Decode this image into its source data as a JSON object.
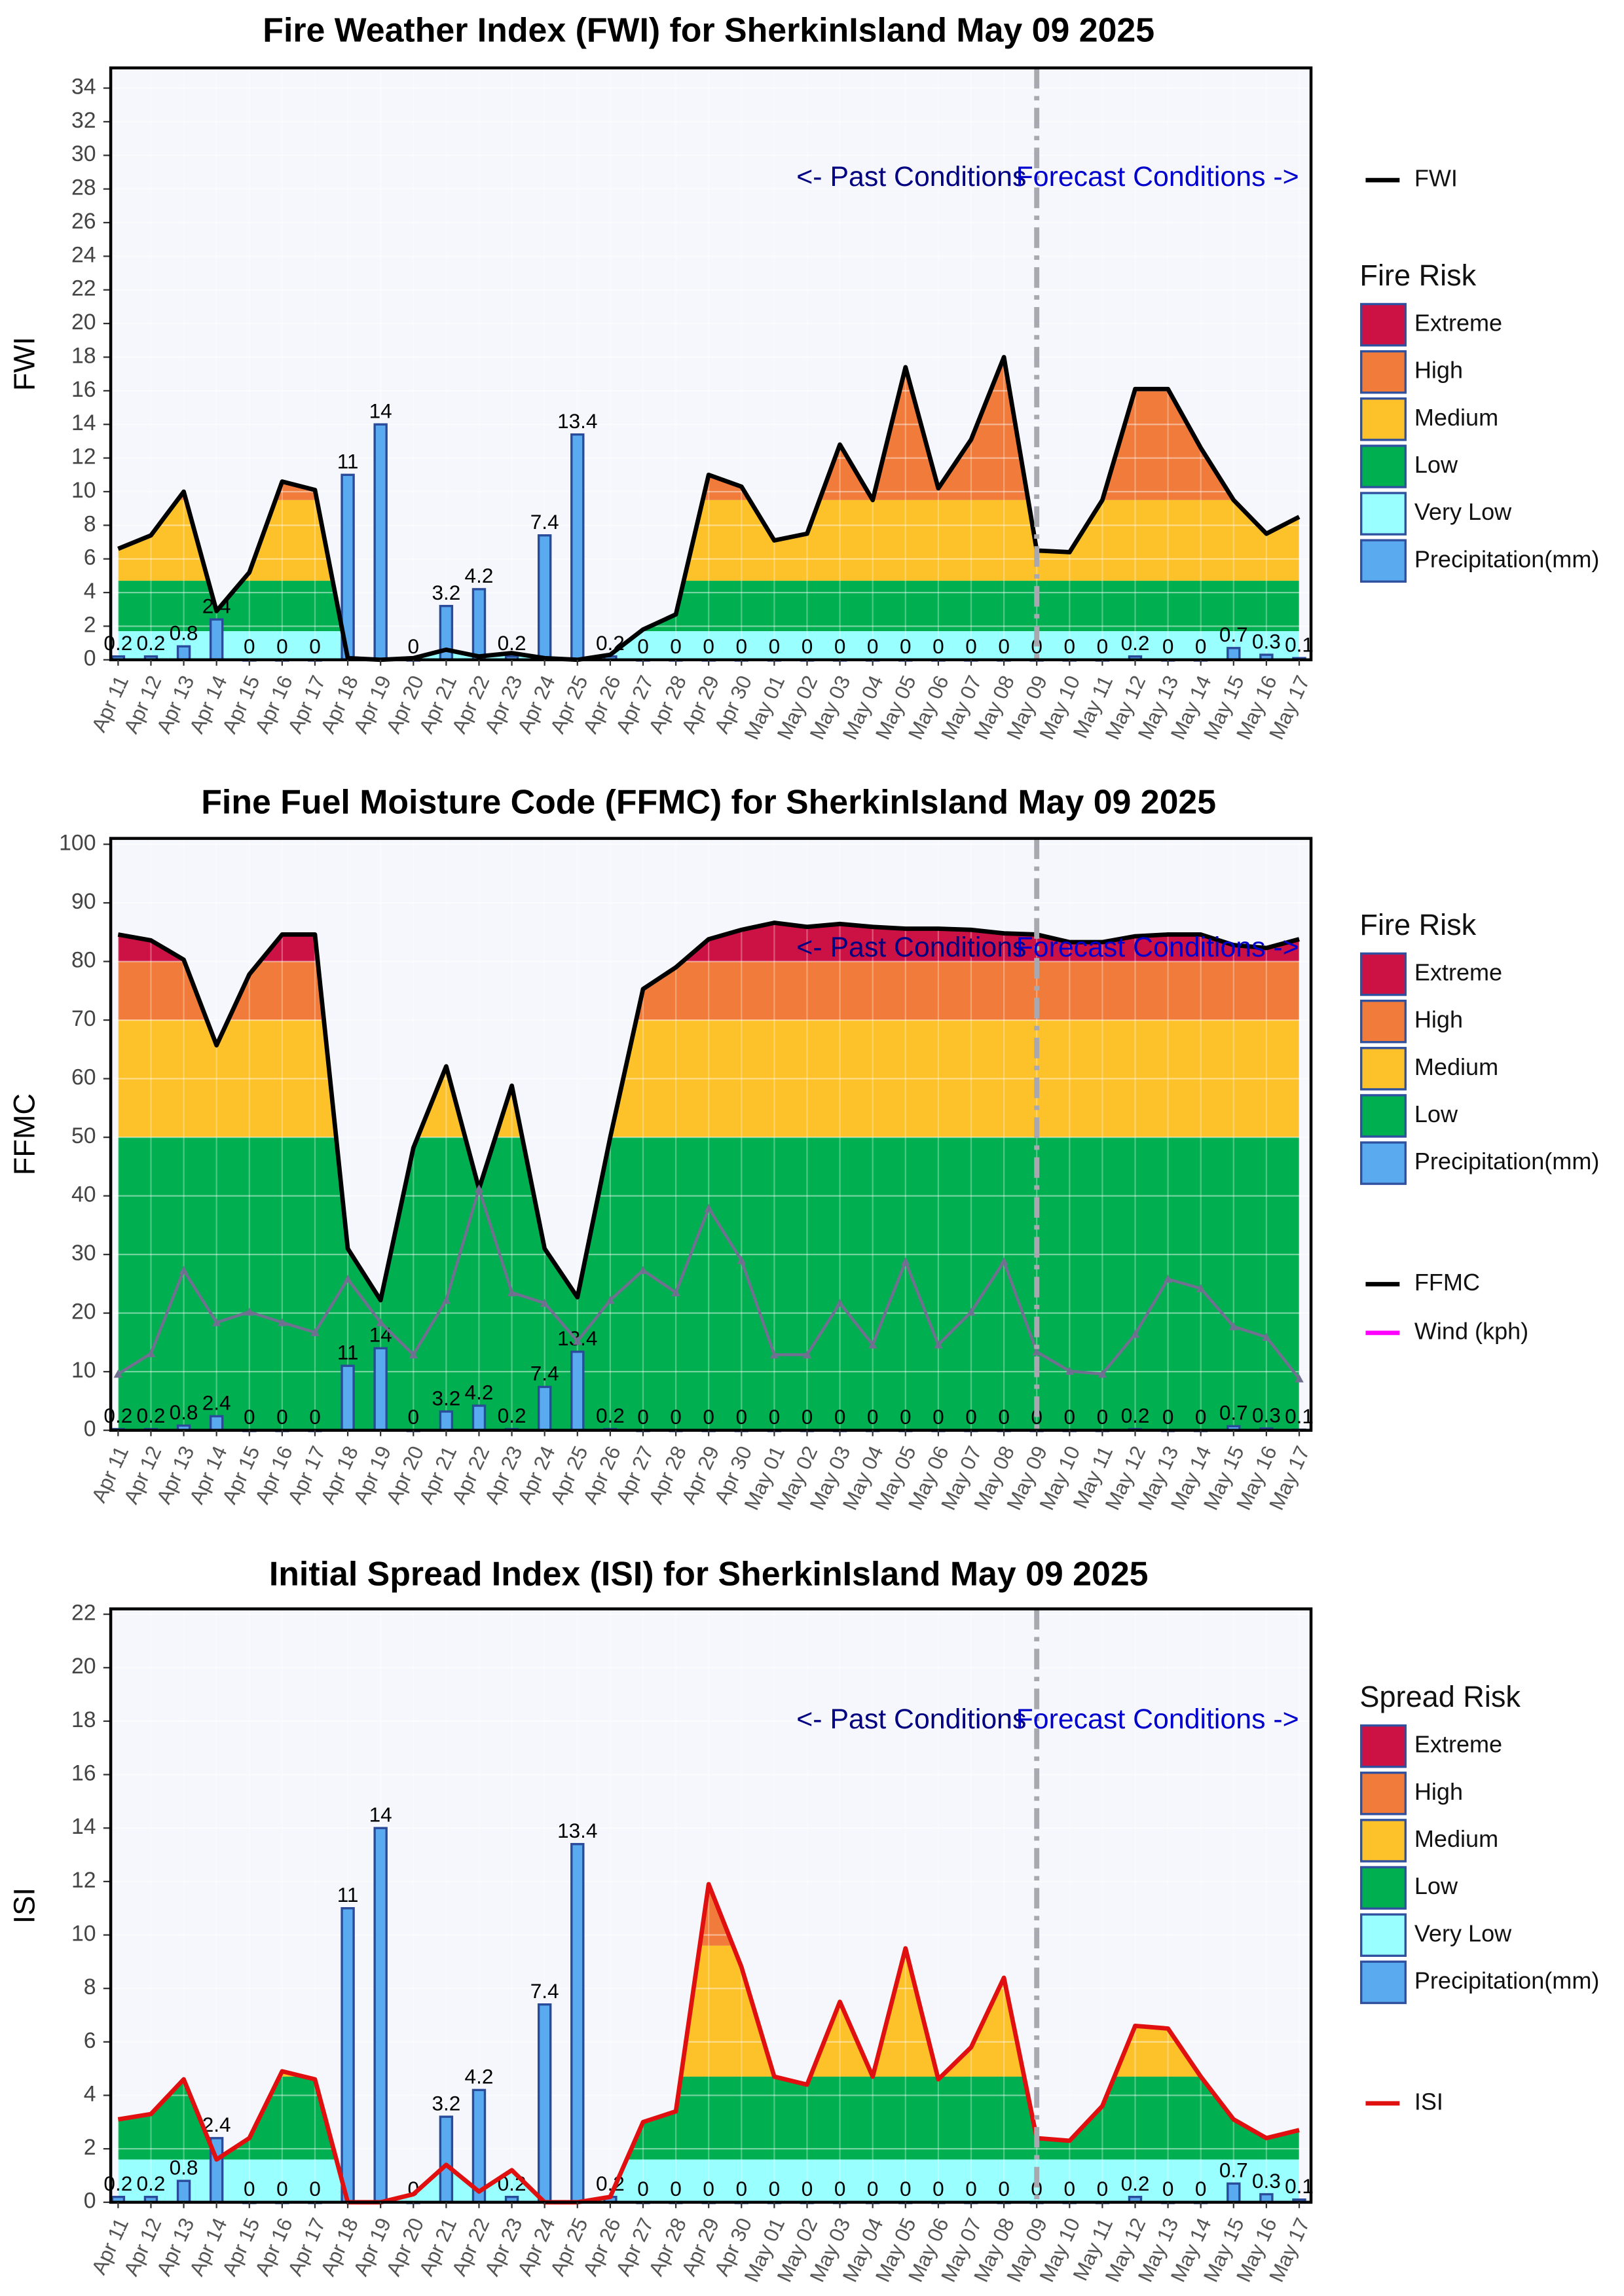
{
  "chart_data": [
    {
      "type": "line",
      "title": "Fire Weather Index (FWI) for SherkinIsland May 09 2025",
      "y_label": "FWI",
      "categories": [
        "Apr 11",
        "Apr 12",
        "Apr 13",
        "Apr 14",
        "Apr 15",
        "Apr 16",
        "Apr 17",
        "Apr 18",
        "Apr 19",
        "Apr 20",
        "Apr 21",
        "Apr 22",
        "Apr 23",
        "Apr 24",
        "Apr 25",
        "Apr 26",
        "Apr 27",
        "Apr 28",
        "Apr 29",
        "Apr 30",
        "May 01",
        "May 02",
        "May 03",
        "May 04",
        "May 05",
        "May 06",
        "May 07",
        "May 08",
        "May 09",
        "May 10",
        "May 11",
        "May 12",
        "May 13",
        "May 14",
        "May 15",
        "May 16",
        "May 17"
      ],
      "ylim": [
        0,
        35.2
      ],
      "yticks": [
        0,
        2,
        4,
        6,
        8,
        10,
        12,
        14,
        16,
        18,
        20,
        22,
        24,
        26,
        28,
        30,
        32,
        34
      ],
      "grid": true,
      "legend_title": "Fire Risk",
      "risk_levels": [
        {
          "name": "Extreme",
          "color": "#cc1144",
          "from": 19
        },
        {
          "name": "High",
          "color": "#f07b3a",
          "from": 9.5,
          "to": 19
        },
        {
          "name": "Medium",
          "color": "#fdc12a",
          "from": 4.7,
          "to": 9.5
        },
        {
          "name": "Low",
          "color": "#00b050",
          "from": 1.7,
          "to": 4.7
        },
        {
          "name": "Very Low",
          "color": "#99ffff",
          "from": 0,
          "to": 1.7
        }
      ],
      "series": [
        {
          "name": "FWI",
          "color": "#000000",
          "fill": true,
          "values": [
            6.6,
            7.4,
            10,
            2.9,
            5.2,
            10.6,
            10.1,
            0.1,
            0,
            0.1,
            0.6,
            0.2,
            0.4,
            0.1,
            0,
            0.3,
            1.8,
            2.7,
            11,
            10.3,
            7.1,
            7.5,
            12.8,
            9.5,
            17.4,
            10.2,
            13.1,
            18,
            6.5,
            6.4,
            9.5,
            16.1,
            16.1,
            12.6,
            9.5,
            7.5,
            8.5
          ]
        }
      ],
      "bars": {
        "name": "Precipitation(mm)",
        "color": "#5aaaf0",
        "values": [
          0.2,
          0.2,
          0.8,
          2.4,
          0,
          0,
          0,
          11,
          14,
          0,
          3.2,
          4.2,
          0.2,
          7.4,
          13.4,
          0.2,
          0,
          0,
          0,
          0,
          0,
          0,
          0,
          0,
          0,
          0,
          0,
          0,
          0,
          0,
          0,
          0.2,
          0,
          0,
          0.7,
          0.3,
          0.1
        ]
      },
      "annotations": [
        "<- Past Conditions",
        "Forecast Conditions ->"
      ],
      "forecast_start": "May 09"
    },
    {
      "type": "line",
      "title": "Fine Fuel Moisture Code (FFMC) for SherkinIsland May 09 2025",
      "y_label": "FFMC",
      "categories": [
        "Apr 11",
        "Apr 12",
        "Apr 13",
        "Apr 14",
        "Apr 15",
        "Apr 16",
        "Apr 17",
        "Apr 18",
        "Apr 19",
        "Apr 20",
        "Apr 21",
        "Apr 22",
        "Apr 23",
        "Apr 24",
        "Apr 25",
        "Apr 26",
        "Apr 27",
        "Apr 28",
        "Apr 29",
        "Apr 30",
        "May 01",
        "May 02",
        "May 03",
        "May 04",
        "May 05",
        "May 06",
        "May 07",
        "May 08",
        "May 09",
        "May 10",
        "May 11",
        "May 12",
        "May 13",
        "May 14",
        "May 15",
        "May 16",
        "May 17"
      ],
      "ylim": [
        0,
        101
      ],
      "yticks": [
        0,
        10,
        20,
        30,
        40,
        50,
        60,
        70,
        80,
        90,
        100
      ],
      "grid": true,
      "legend_title": "Fire Risk",
      "risk_levels": [
        {
          "name": "Extreme",
          "color": "#cc1144",
          "from": 80
        },
        {
          "name": "High",
          "color": "#f07b3a",
          "from": 70,
          "to": 80
        },
        {
          "name": "Medium",
          "color": "#fdc12a",
          "from": 50,
          "to": 70
        },
        {
          "name": "Low",
          "color": "#00b050",
          "from": 0,
          "to": 50
        }
      ],
      "series": [
        {
          "name": "FFMC",
          "color": "#000000",
          "fill": true,
          "values": [
            84.6,
            83.6,
            80.3,
            65.7,
            77.8,
            84.6,
            84.6,
            31,
            22.2,
            48.2,
            62.1,
            41.2,
            58.8,
            31,
            22.7,
            50,
            75.3,
            79,
            83.8,
            85.4,
            86.6,
            85.9,
            86.4,
            85.9,
            85.6,
            85.6,
            85.4,
            84.8,
            84.6,
            83.3,
            83.3,
            84.3,
            84.6,
            84.6,
            82.8,
            82.3,
            83.8
          ]
        },
        {
          "name": "Wind (kph)",
          "color": "#ff00ff",
          "line_color": "#707090",
          "values": [
            9.6,
            13.1,
            27.3,
            18.4,
            20.2,
            18.4,
            16.7,
            25.8,
            18.4,
            12.9,
            22.2,
            41.2,
            23.5,
            21.7,
            15.2,
            22.2,
            27.3,
            23.5,
            37.9,
            29,
            12.9,
            12.9,
            21.7,
            14.6,
            28.8,
            14.6,
            20.2,
            28.8,
            13.4,
            10.1,
            9.6,
            16.4,
            25.8,
            24.2,
            17.7,
            15.9,
            8.8
          ]
        }
      ],
      "bars": {
        "name": "Precipitation(mm)",
        "color": "#5aaaf0",
        "values": [
          0.2,
          0.2,
          0.8,
          2.4,
          0,
          0,
          0,
          11,
          14,
          0,
          3.2,
          4.2,
          0.2,
          7.4,
          13.4,
          0.2,
          0,
          0,
          0,
          0,
          0,
          0,
          0,
          0,
          0,
          0,
          0,
          0,
          0,
          0,
          0,
          0.2,
          0,
          0,
          0.7,
          0.3,
          0.1
        ]
      },
      "annotations": [
        "<- Past Conditions",
        "Forecast Conditions ->"
      ],
      "forecast_start": "May 09"
    },
    {
      "type": "line",
      "title": "Initial Spread Index (ISI) for SherkinIsland May 09 2025",
      "y_label": "ISI",
      "categories": [
        "Apr 11",
        "Apr 12",
        "Apr 13",
        "Apr 14",
        "Apr 15",
        "Apr 16",
        "Apr 17",
        "Apr 18",
        "Apr 19",
        "Apr 20",
        "Apr 21",
        "Apr 22",
        "Apr 23",
        "Apr 24",
        "Apr 25",
        "Apr 26",
        "Apr 27",
        "Apr 28",
        "Apr 29",
        "Apr 30",
        "May 01",
        "May 02",
        "May 03",
        "May 04",
        "May 05",
        "May 06",
        "May 07",
        "May 08",
        "May 09",
        "May 10",
        "May 11",
        "May 12",
        "May 13",
        "May 14",
        "May 15",
        "May 16",
        "May 17"
      ],
      "ylim": [
        0,
        22.2
      ],
      "yticks": [
        0,
        2,
        4,
        6,
        8,
        10,
        12,
        14,
        16,
        18,
        20,
        22
      ],
      "grid": true,
      "legend_title": "Spread Risk",
      "risk_levels": [
        {
          "name": "Extreme",
          "color": "#cc1144",
          "from": 13
        },
        {
          "name": "High",
          "color": "#f07b3a",
          "from": 9.6,
          "to": 13
        },
        {
          "name": "Medium",
          "color": "#fdc12a",
          "from": 4.7,
          "to": 9.6
        },
        {
          "name": "Low",
          "color": "#00b050",
          "from": 1.6,
          "to": 4.7
        },
        {
          "name": "Very Low",
          "color": "#99ffff",
          "from": 0,
          "to": 1.6
        }
      ],
      "series": [
        {
          "name": "ISI",
          "color": "#e01010",
          "fill": true,
          "values": [
            3.1,
            3.3,
            4.6,
            1.6,
            2.4,
            4.9,
            4.6,
            0,
            0,
            0.3,
            1.4,
            0.4,
            1.2,
            0,
            0,
            0.2,
            3,
            3.4,
            11.9,
            8.8,
            4.7,
            4.4,
            7.5,
            4.7,
            9.5,
            4.6,
            5.8,
            8.4,
            2.4,
            2.3,
            3.6,
            6.6,
            6.5,
            4.7,
            3.1,
            2.4,
            2.7
          ]
        }
      ],
      "bars": {
        "name": "Precipitation(mm)",
        "color": "#5aaaf0",
        "values": [
          0.2,
          0.2,
          0.8,
          2.4,
          0,
          0,
          0,
          11,
          14,
          0,
          3.2,
          4.2,
          0.2,
          7.4,
          13.4,
          0.2,
          0,
          0,
          0,
          0,
          0,
          0,
          0,
          0,
          0,
          0,
          0,
          0,
          0,
          0,
          0,
          0.2,
          0,
          0,
          0.7,
          0.3,
          0.1
        ]
      },
      "annotations": [
        "<- Past Conditions",
        "Forecast Conditions ->"
      ],
      "forecast_start": "May 09"
    }
  ]
}
